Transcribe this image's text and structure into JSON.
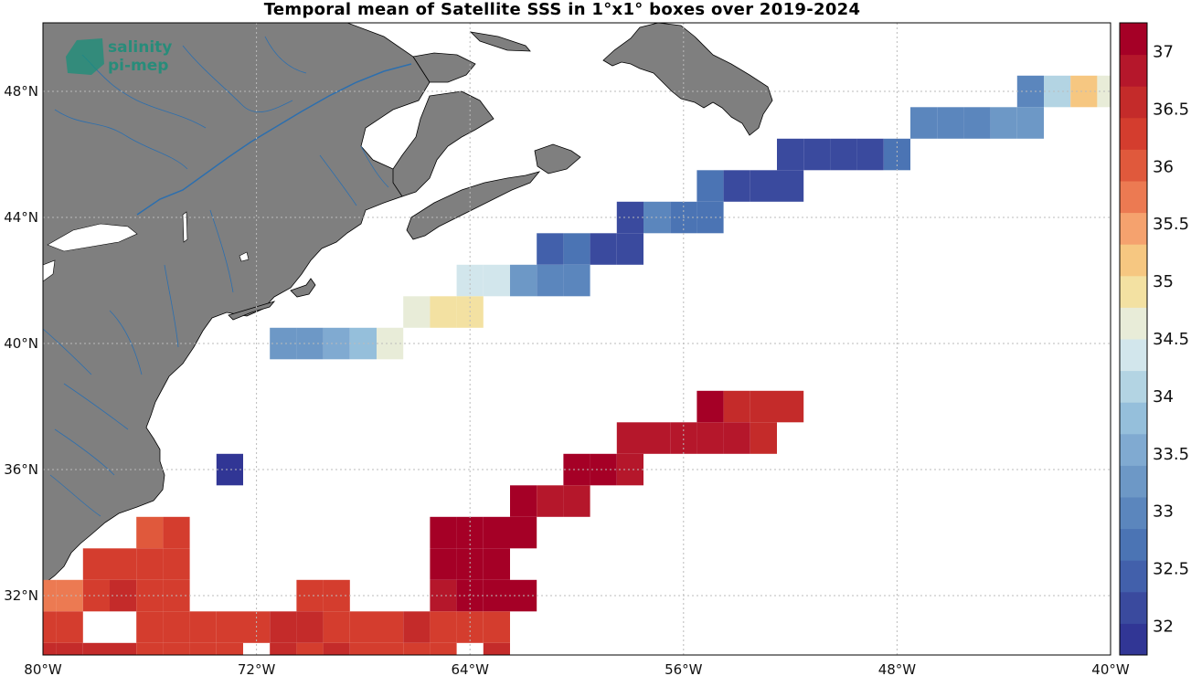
{
  "title": "Temporal mean of Satellite SSS in 1°x1° boxes over 2019-2024",
  "logo": {
    "line1": "salinity",
    "line2": "pi-mep"
  },
  "map": {
    "lon_range": [
      -80,
      -40
    ],
    "lat_range": [
      30,
      49
    ]
  },
  "lon_ticks": [
    {
      "lon": -80,
      "label": "80°W"
    },
    {
      "lon": -72,
      "label": "72°W"
    },
    {
      "lon": -64,
      "label": "64°W"
    },
    {
      "lon": -56,
      "label": "56°W"
    },
    {
      "lon": -48,
      "label": "48°W"
    },
    {
      "lon": -40,
      "label": "40°W"
    }
  ],
  "lat_ticks": [
    {
      "lat": 48,
      "label": "48°N"
    },
    {
      "lat": 44,
      "label": "44°N"
    },
    {
      "lat": 40,
      "label": "40°N"
    },
    {
      "lat": 36,
      "label": "36°N"
    },
    {
      "lat": 32,
      "label": "32°N"
    }
  ],
  "colorbar": {
    "min": 31.75,
    "max": 37.25,
    "colors": [
      "#313695",
      "#3a4a9e",
      "#4260ab",
      "#4b74b4",
      "#5b86bd",
      "#6d98c6",
      "#80aad1",
      "#95bfdb",
      "#b3d4e3",
      "#d2e6ec",
      "#e8ecd8",
      "#f3e1a2",
      "#f6c781",
      "#f5a26e",
      "#ec7a52",
      "#e0593c",
      "#d43d2e",
      "#c42b2a",
      "#b5172b",
      "#a50026"
    ],
    "ticks": [
      "32",
      "32.5",
      "33",
      "33.5",
      "34",
      "34.5",
      "35",
      "35.5",
      "36",
      "36.5",
      "37"
    ]
  },
  "chart_data": {
    "type": "heatmap",
    "title": "Temporal mean of Satellite SSS in 1°x1° boxes over 2019-2024",
    "variable": "SSS",
    "cell_size_deg": 1,
    "cells": [
      {
        "lon": -43,
        "lat": 48,
        "v": 33.0
      },
      {
        "lon": -42,
        "lat": 48,
        "v": 34.0
      },
      {
        "lon": -41,
        "lat": 48,
        "v": 35.1
      },
      {
        "lon": -40,
        "lat": 48,
        "v": 34.6
      },
      {
        "lon": -47,
        "lat": 47,
        "v": 33.1
      },
      {
        "lon": -46,
        "lat": 47,
        "v": 32.9
      },
      {
        "lon": -45,
        "lat": 47,
        "v": 32.9
      },
      {
        "lon": -44,
        "lat": 47,
        "v": 33.2
      },
      {
        "lon": -43,
        "lat": 47,
        "v": 33.2
      },
      {
        "lon": -52,
        "lat": 46,
        "v": 32.2
      },
      {
        "lon": -51,
        "lat": 46,
        "v": 32.2
      },
      {
        "lon": -50,
        "lat": 46,
        "v": 32.2
      },
      {
        "lon": -49,
        "lat": 46,
        "v": 32.2
      },
      {
        "lon": -48,
        "lat": 46,
        "v": 32.6
      },
      {
        "lon": -55,
        "lat": 45,
        "v": 32.6
      },
      {
        "lon": -54,
        "lat": 45,
        "v": 32.3
      },
      {
        "lon": -53,
        "lat": 45,
        "v": 32.3
      },
      {
        "lon": -52,
        "lat": 45,
        "v": 32.3
      },
      {
        "lon": -58,
        "lat": 44,
        "v": 32.3
      },
      {
        "lon": -57,
        "lat": 44,
        "v": 32.9
      },
      {
        "lon": -56,
        "lat": 44,
        "v": 32.7
      },
      {
        "lon": -55,
        "lat": 44,
        "v": 32.7
      },
      {
        "lon": -61,
        "lat": 43,
        "v": 32.5
      },
      {
        "lon": -60,
        "lat": 43,
        "v": 32.7
      },
      {
        "lon": -59,
        "lat": 43,
        "v": 32.2
      },
      {
        "lon": -58,
        "lat": 43,
        "v": 32.2
      },
      {
        "lon": -64,
        "lat": 42,
        "v": 34.3
      },
      {
        "lon": -63,
        "lat": 42,
        "v": 34.3
      },
      {
        "lon": -62,
        "lat": 42,
        "v": 33.4
      },
      {
        "lon": -61,
        "lat": 42,
        "v": 33.1
      },
      {
        "lon": -60,
        "lat": 42,
        "v": 32.9
      },
      {
        "lon": -66,
        "lat": 41,
        "v": 34.6
      },
      {
        "lon": -65,
        "lat": 41,
        "v": 35.0
      },
      {
        "lon": -64,
        "lat": 41,
        "v": 35.0
      },
      {
        "lon": -71,
        "lat": 40,
        "v": 33.4
      },
      {
        "lon": -70,
        "lat": 40,
        "v": 33.4
      },
      {
        "lon": -69,
        "lat": 40,
        "v": 33.6
      },
      {
        "lon": -68,
        "lat": 40,
        "v": 33.9
      },
      {
        "lon": -67,
        "lat": 40,
        "v": 34.6
      },
      {
        "lon": -55,
        "lat": 38,
        "v": 37.0
      },
      {
        "lon": -54,
        "lat": 38,
        "v": 36.6
      },
      {
        "lon": -53,
        "lat": 38,
        "v": 36.6
      },
      {
        "lon": -52,
        "lat": 38,
        "v": 36.6
      },
      {
        "lon": -58,
        "lat": 37,
        "v": 36.8
      },
      {
        "lon": -57,
        "lat": 37,
        "v": 36.8
      },
      {
        "lon": -56,
        "lat": 37,
        "v": 36.8
      },
      {
        "lon": -55,
        "lat": 37,
        "v": 36.8
      },
      {
        "lon": -54,
        "lat": 37,
        "v": 36.8
      },
      {
        "lon": -53,
        "lat": 37,
        "v": 36.6
      },
      {
        "lon": -60,
        "lat": 36,
        "v": 37.0
      },
      {
        "lon": -59,
        "lat": 36,
        "v": 37.0
      },
      {
        "lon": -58,
        "lat": 36,
        "v": 36.8
      },
      {
        "lon": -62,
        "lat": 35,
        "v": 37.0
      },
      {
        "lon": -61,
        "lat": 35,
        "v": 36.7
      },
      {
        "lon": -60,
        "lat": 35,
        "v": 36.7
      },
      {
        "lon": -65,
        "lat": 34,
        "v": 37.0
      },
      {
        "lon": -64,
        "lat": 34,
        "v": 37.0
      },
      {
        "lon": -63,
        "lat": 34,
        "v": 37.0
      },
      {
        "lon": -62,
        "lat": 34,
        "v": 37.0
      },
      {
        "lon": -76,
        "lat": 34,
        "v": 35.9
      },
      {
        "lon": -75,
        "lat": 34,
        "v": 36.2
      },
      {
        "lon": -63,
        "lat": 33,
        "v": 37.0
      },
      {
        "lon": -64,
        "lat": 33,
        "v": 37.0
      },
      {
        "lon": -65,
        "lat": 33,
        "v": 37.0
      },
      {
        "lon": -77,
        "lat": 33,
        "v": 36.2
      },
      {
        "lon": -76,
        "lat": 33,
        "v": 36.2
      },
      {
        "lon": -75,
        "lat": 33,
        "v": 36.4
      },
      {
        "lon": -78,
        "lat": 33,
        "v": 36.2
      },
      {
        "lon": -80,
        "lat": 32,
        "v": 35.7
      },
      {
        "lon": -79,
        "lat": 32,
        "v": 35.7
      },
      {
        "lon": -78,
        "lat": 32,
        "v": 36.2
      },
      {
        "lon": -77,
        "lat": 32,
        "v": 36.6
      },
      {
        "lon": -76,
        "lat": 32,
        "v": 36.2
      },
      {
        "lon": -75,
        "lat": 32,
        "v": 36.2
      },
      {
        "lon": -70,
        "lat": 32,
        "v": 36.4
      },
      {
        "lon": -69,
        "lat": 32,
        "v": 36.2
      },
      {
        "lon": -65,
        "lat": 32,
        "v": 36.8
      },
      {
        "lon": -64,
        "lat": 32,
        "v": 37.0
      },
      {
        "lon": -63,
        "lat": 32,
        "v": 37.0
      },
      {
        "lon": -62,
        "lat": 32,
        "v": 37.0
      },
      {
        "lon": -80,
        "lat": 31,
        "v": 36.2
      },
      {
        "lon": -79,
        "lat": 31,
        "v": 36.4
      },
      {
        "lon": -76,
        "lat": 31,
        "v": 36.2
      },
      {
        "lon": -75,
        "lat": 31,
        "v": 36.2
      },
      {
        "lon": -74,
        "lat": 31,
        "v": 36.4
      },
      {
        "lon": -73,
        "lat": 31,
        "v": 36.4
      },
      {
        "lon": -72,
        "lat": 31,
        "v": 36.4
      },
      {
        "lon": -71,
        "lat": 31,
        "v": 36.6
      },
      {
        "lon": -70,
        "lat": 31,
        "v": 36.6
      },
      {
        "lon": -69,
        "lat": 31,
        "v": 36.2
      },
      {
        "lon": -68,
        "lat": 31,
        "v": 36.2
      },
      {
        "lon": -67,
        "lat": 31,
        "v": 36.4
      },
      {
        "lon": -66,
        "lat": 31,
        "v": 36.6
      },
      {
        "lon": -65,
        "lat": 31,
        "v": 36.4
      },
      {
        "lon": -64,
        "lat": 31,
        "v": 36.4
      },
      {
        "lon": -63,
        "lat": 31,
        "v": 36.4
      },
      {
        "lon": -80,
        "lat": 30,
        "v": 36.6
      },
      {
        "lon": -79,
        "lat": 30,
        "v": 36.6
      },
      {
        "lon": -78,
        "lat": 30,
        "v": 36.6
      },
      {
        "lon": -77,
        "lat": 30,
        "v": 36.6
      },
      {
        "lon": -76,
        "lat": 30,
        "v": 36.2
      },
      {
        "lon": -75,
        "lat": 30,
        "v": 36.4
      },
      {
        "lon": -74,
        "lat": 30,
        "v": 36.4
      },
      {
        "lon": -73,
        "lat": 30,
        "v": 36.4
      },
      {
        "lon": -71,
        "lat": 30,
        "v": 36.6
      },
      {
        "lon": -70,
        "lat": 30,
        "v": 36.4
      },
      {
        "lon": -69,
        "lat": 30,
        "v": 36.6
      },
      {
        "lon": -68,
        "lat": 30,
        "v": 36.4
      },
      {
        "lon": -67,
        "lat": 30,
        "v": 36.4
      },
      {
        "lon": -66,
        "lat": 30,
        "v": 36.4
      },
      {
        "lon": -65,
        "lat": 30,
        "v": 36.4
      },
      {
        "lon": -63,
        "lat": 30,
        "v": 36.6
      },
      {
        "lon": -73,
        "lat": 36,
        "v": 31.9
      }
    ]
  }
}
